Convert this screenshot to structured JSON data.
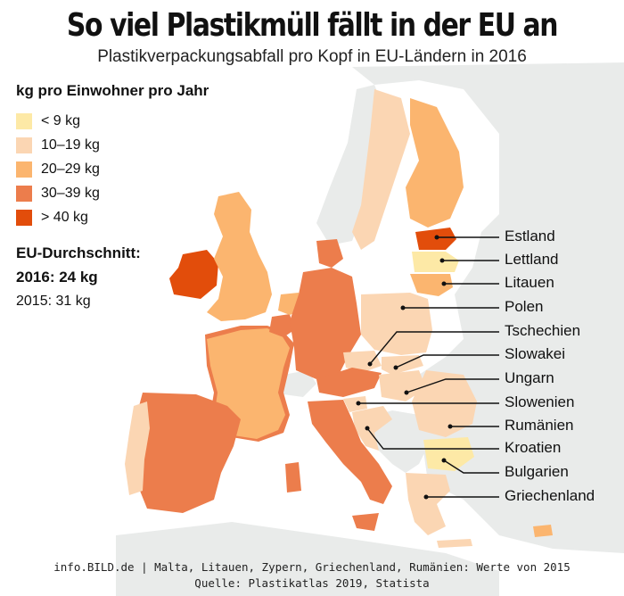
{
  "header": {
    "title": "So viel Plastikmüll fällt in der EU an",
    "subtitle": "Plastikverpackungsabfall pro Kopf in EU-Ländern in 2016"
  },
  "legend": {
    "heading": "kg pro Einwohner pro Jahr",
    "items": [
      {
        "label": "< 9 kg",
        "color": "#fde9a6"
      },
      {
        "label": "10–19 kg",
        "color": "#fbd6b3"
      },
      {
        "label": "20–29 kg",
        "color": "#fbb56f"
      },
      {
        "label": "30–39 kg",
        "color": "#ec7d4c"
      },
      {
        "label": "> 40 kg",
        "color": "#e24d0b"
      }
    ]
  },
  "average": {
    "heading": "EU-Durchschnitt:",
    "current": "2016: 24 kg",
    "previous": "2015: 31 kg"
  },
  "callouts": [
    "Estland",
    "Lettland",
    "Litauen",
    "Polen",
    "Tschechien",
    "Slowakei",
    "Ungarn",
    "Slowenien",
    "Rumänien",
    "Kroatien",
    "Bulgarien",
    "Griechenland"
  ],
  "map_colors": {
    "background_land": "#e9ebea",
    "sea": "#ffffff",
    "lt10": "#fde9a6",
    "c10_19": "#fbd6b3",
    "c20_29": "#fbb56f",
    "c30_39": "#ec7d4c",
    "gt40": "#e24d0b"
  },
  "footer": {
    "line1": "info.BILD.de | Malta, Litauen, Zypern, Griechenland, Rumänien: Werte von 2015",
    "line2": "Quelle: Plastikatlas 2019, Statista"
  }
}
